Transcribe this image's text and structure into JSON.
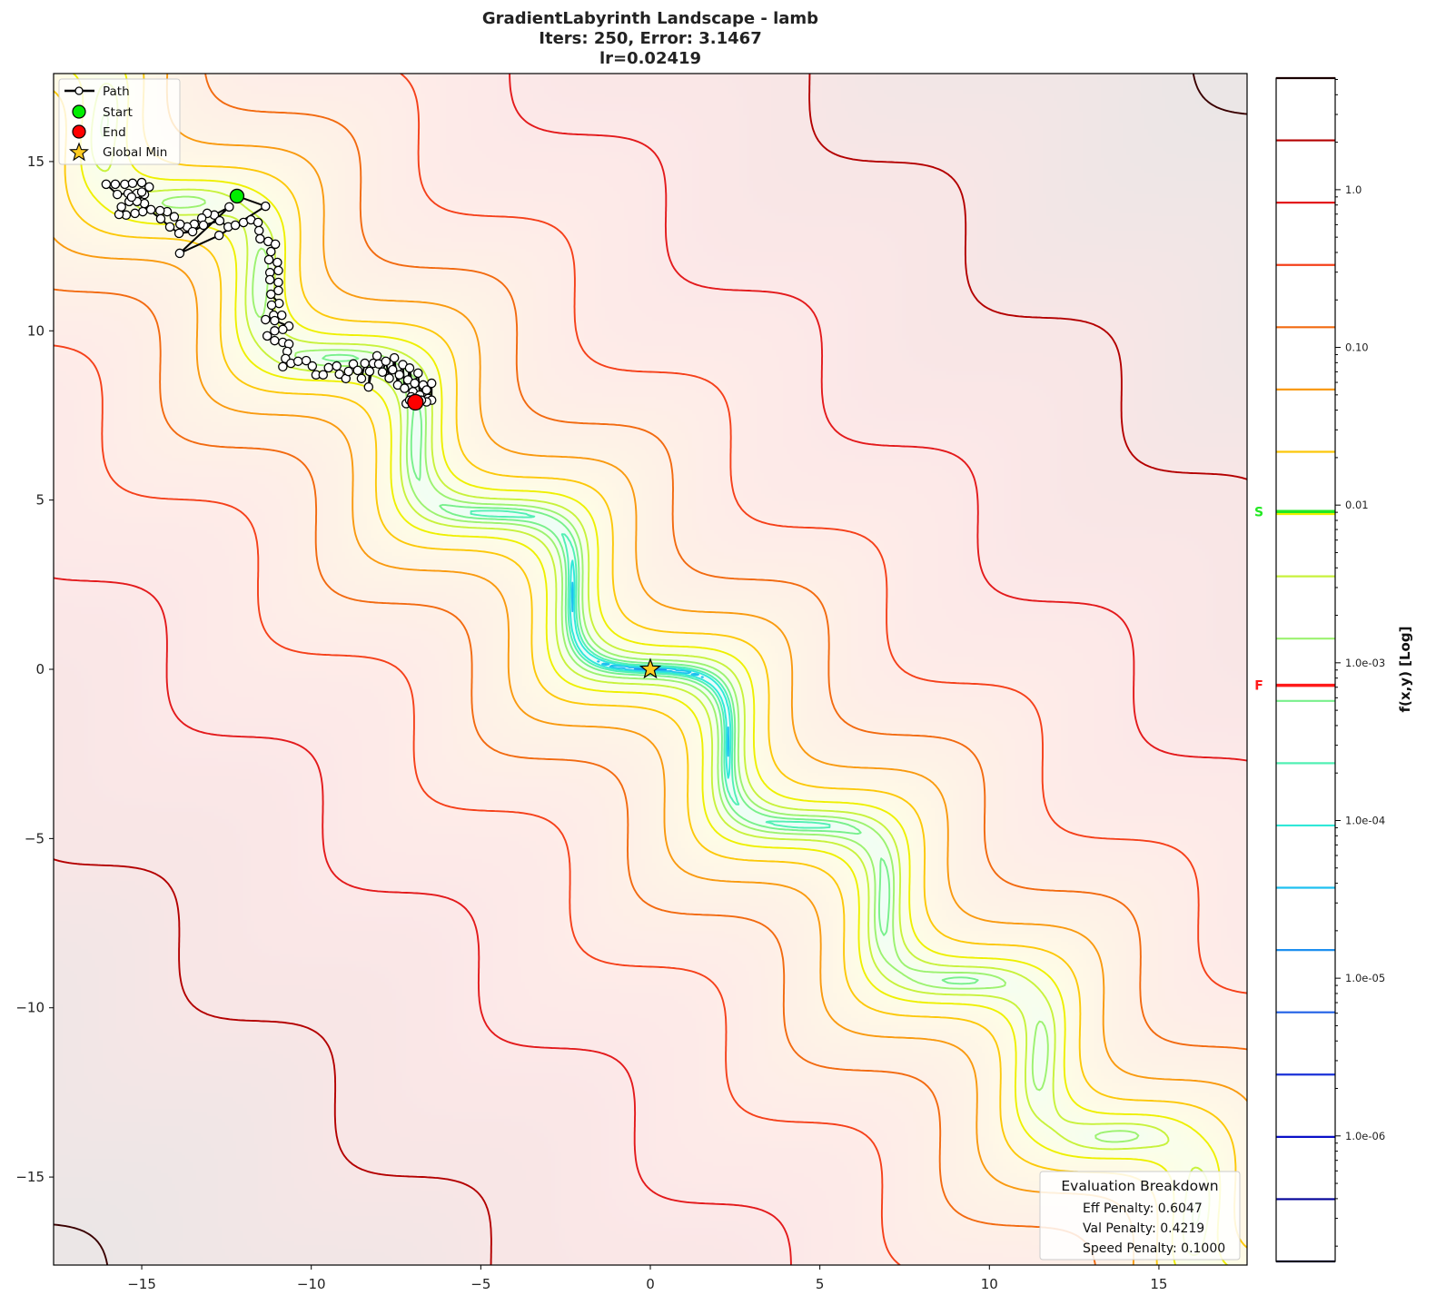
{
  "title": {
    "line1": "GradientLabyrinth Landscape - lamb",
    "line2": "Iters: 250, Error: 3.1467",
    "line3": "lr=0.02419"
  },
  "chart_data": {
    "type": "contour",
    "xlim": [
      -17.6,
      17.6
    ],
    "ylim": [
      -17.6,
      17.6
    ],
    "x_ticks": [
      {
        "value": -15,
        "label": "−15"
      },
      {
        "value": -10,
        "label": "−10"
      },
      {
        "value": -5,
        "label": "−5"
      },
      {
        "value": 0,
        "label": "0"
      },
      {
        "value": 5,
        "label": "5"
      },
      {
        "value": 10,
        "label": "10"
      },
      {
        "value": 15,
        "label": "15"
      }
    ],
    "y_ticks": [
      {
        "value": -15,
        "label": "−15"
      },
      {
        "value": -10,
        "label": "−10"
      },
      {
        "value": -5,
        "label": "−5"
      },
      {
        "value": 0,
        "label": "0"
      },
      {
        "value": 5,
        "label": "5"
      },
      {
        "value": 10,
        "label": "10"
      },
      {
        "value": 15,
        "label": "15"
      }
    ],
    "grid": false,
    "colorbar": {
      "label": "f(x,y) [Log]",
      "scale": "log",
      "range": [
        1.6e-07,
        5.1
      ],
      "n_levels": 20,
      "colors_high_to_low": [
        "#3a0000",
        "#b40000",
        "#e31a1c",
        "#f5401a",
        "#f26a10",
        "#f99a10",
        "#fcc80a",
        "#eef000",
        "#c8f23c",
        "#9cf270",
        "#78f08c",
        "#52f0b4",
        "#30e8d8",
        "#1fc0f0",
        "#1e90f0",
        "#2060e6",
        "#1a30d8",
        "#0a10c8",
        "#000098",
        "#00004a"
      ],
      "ticks": [
        {
          "value": 1.0,
          "label": "1.0"
        },
        {
          "value": 0.1,
          "label": "0.10"
        },
        {
          "value": 0.01,
          "label": "0.01"
        },
        {
          "value": 0.001,
          "label": "1.0e-03"
        },
        {
          "value": 0.0001,
          "label": "1.0e-04"
        },
        {
          "value": 1e-05,
          "label": "1.0e-05"
        },
        {
          "value": 1e-06,
          "label": "1.0e-06"
        }
      ],
      "markers": [
        {
          "label": "S",
          "value": 0.0091,
          "color": "#22e822"
        },
        {
          "label": "F",
          "value": 0.00072,
          "color": "#ff1a1a"
        }
      ]
    },
    "path": {
      "name": "Path",
      "points": [
        [
          -12.19,
          13.98
        ],
        [
          -11.35,
          13.68
        ],
        [
          -12.72,
          12.82
        ],
        [
          -13.88,
          12.29
        ],
        [
          -12.42,
          13.66
        ],
        [
          -12.86,
          13.42
        ],
        [
          -13.07,
          13.47
        ],
        [
          -13.23,
          13.33
        ],
        [
          -13.45,
          13.15
        ],
        [
          -13.66,
          13.07
        ],
        [
          -13.87,
          13.15
        ],
        [
          -14.04,
          13.37
        ],
        [
          -14.25,
          13.52
        ],
        [
          -14.46,
          13.55
        ],
        [
          -14.73,
          13.58
        ],
        [
          -14.92,
          13.76
        ],
        [
          -14.97,
          13.52
        ],
        [
          -15.2,
          13.47
        ],
        [
          -15.46,
          13.42
        ],
        [
          -15.67,
          13.44
        ],
        [
          -15.6,
          13.66
        ],
        [
          -15.37,
          13.82
        ],
        [
          -15.14,
          13.82
        ],
        [
          -14.92,
          14.03
        ],
        [
          -15.14,
          14.06
        ],
        [
          -15.4,
          14.06
        ],
        [
          -15.72,
          14.03
        ],
        [
          -16.05,
          14.33
        ],
        [
          -15.78,
          14.33
        ],
        [
          -15.5,
          14.33
        ],
        [
          -15.27,
          14.36
        ],
        [
          -15.0,
          14.38
        ],
        [
          -14.78,
          14.25
        ],
        [
          -15.0,
          14.1
        ],
        [
          -15.3,
          13.95
        ],
        [
          -14.44,
          13.31
        ],
        [
          -14.17,
          13.07
        ],
        [
          -13.9,
          12.88
        ],
        [
          -13.5,
          12.93
        ],
        [
          -13.18,
          13.12
        ],
        [
          -12.7,
          13.25
        ],
        [
          -12.45,
          13.07
        ],
        [
          -12.24,
          13.12
        ],
        [
          -12.0,
          13.2
        ],
        [
          -11.78,
          13.28
        ],
        [
          -11.57,
          13.2
        ],
        [
          -11.54,
          12.96
        ],
        [
          -11.51,
          12.72
        ],
        [
          -11.27,
          12.64
        ],
        [
          -11.06,
          12.56
        ],
        [
          -11.19,
          12.34
        ],
        [
          -11.25,
          12.1
        ],
        [
          -11.0,
          12.02
        ],
        [
          -10.97,
          11.78
        ],
        [
          -11.22,
          11.72
        ],
        [
          -11.22,
          11.51
        ],
        [
          -10.97,
          11.43
        ],
        [
          -10.97,
          11.19
        ],
        [
          -11.19,
          11.08
        ],
        [
          -10.95,
          10.81
        ],
        [
          -11.17,
          10.76
        ],
        [
          -11.11,
          10.46
        ],
        [
          -10.87,
          10.46
        ],
        [
          -11.35,
          10.33
        ],
        [
          -11.08,
          10.3
        ],
        [
          -10.66,
          10.14
        ],
        [
          -10.84,
          10.04
        ],
        [
          -11.08,
          10.0
        ],
        [
          -11.3,
          9.85
        ],
        [
          -11.08,
          9.71
        ],
        [
          -10.84,
          9.66
        ],
        [
          -10.66,
          9.61
        ],
        [
          -10.71,
          9.39
        ],
        [
          -10.76,
          9.18
        ],
        [
          -10.84,
          8.94
        ],
        [
          -10.6,
          9.04
        ],
        [
          -10.39,
          9.1
        ],
        [
          -10.15,
          9.12
        ],
        [
          -9.97,
          8.96
        ],
        [
          -9.86,
          8.7
        ],
        [
          -9.65,
          8.7
        ],
        [
          -9.49,
          8.91
        ],
        [
          -9.25,
          8.96
        ],
        [
          -9.17,
          8.72
        ],
        [
          -8.98,
          8.59
        ],
        [
          -8.9,
          8.8
        ],
        [
          -8.76,
          9.02
        ],
        [
          -8.63,
          8.83
        ],
        [
          -8.52,
          8.59
        ],
        [
          -8.42,
          9.04
        ],
        [
          -8.28,
          8.8
        ],
        [
          -8.31,
          8.34
        ],
        [
          -8.17,
          9.04
        ],
        [
          -8.06,
          9.26
        ],
        [
          -8.01,
          9.02
        ],
        [
          -7.9,
          8.78
        ],
        [
          -7.8,
          9.1
        ],
        [
          -7.7,
          8.6
        ],
        [
          -7.6,
          8.85
        ],
        [
          -7.55,
          9.2
        ],
        [
          -7.45,
          8.4
        ],
        [
          -7.4,
          8.7
        ],
        [
          -7.3,
          9.0
        ],
        [
          -7.25,
          8.3
        ],
        [
          -7.15,
          8.55
        ],
        [
          -7.1,
          8.9
        ],
        [
          -7.0,
          8.2
        ],
        [
          -6.95,
          8.45
        ],
        [
          -6.85,
          8.75
        ],
        [
          -6.8,
          8.1
        ],
        [
          -6.7,
          8.4
        ],
        [
          -6.6,
          8.25
        ],
        [
          -6.55,
          8.0
        ],
        [
          -6.45,
          8.45
        ],
        [
          -6.45,
          7.95
        ],
        [
          -6.6,
          7.9
        ],
        [
          -6.75,
          7.95
        ],
        [
          -7.05,
          8.05
        ],
        [
          -7.2,
          7.85
        ],
        [
          -7.1,
          7.95
        ],
        [
          -6.93,
          7.89
        ]
      ]
    },
    "start": {
      "name": "Start",
      "x": -12.19,
      "y": 13.98,
      "color": "#00ee00"
    },
    "end": {
      "name": "End",
      "x": -6.93,
      "y": 7.89,
      "color": "#ff0000"
    },
    "global_min": {
      "name": "Global Min",
      "x": 0,
      "y": 0,
      "color": "#ffcc22"
    },
    "legend": {
      "placement": "upper-left",
      "items": [
        "Path",
        "Start",
        "End",
        "Global Min"
      ]
    }
  },
  "evaluation": {
    "title": "Evaluation Breakdown",
    "lines": [
      "Eff Penalty: 0.6047",
      "Val Penalty: 0.4219",
      "Speed Penalty: 0.1000"
    ],
    "placement": "lower-right"
  }
}
